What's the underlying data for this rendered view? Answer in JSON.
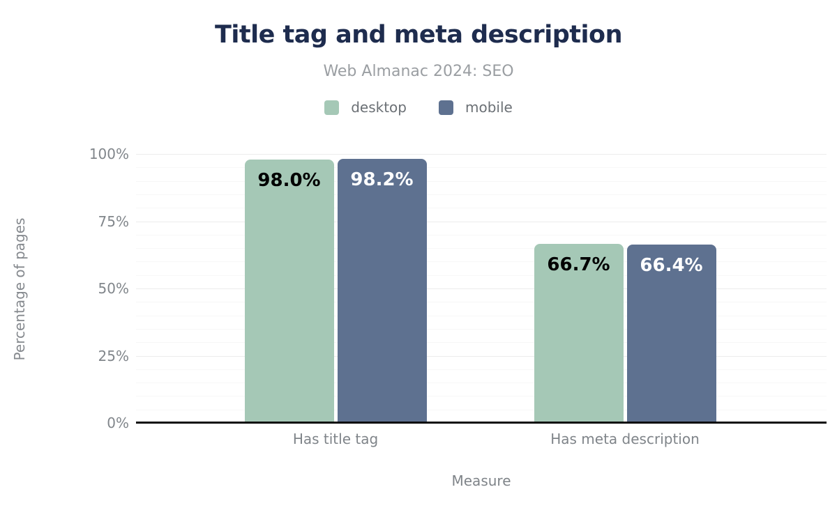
{
  "chart_data": {
    "type": "bar",
    "title": "Title tag and meta description",
    "subtitle": "Web Almanac 2024: SEO",
    "xlabel": "Measure",
    "ylabel": "Percentage of pages",
    "categories": [
      "Has title tag",
      "Has meta description"
    ],
    "series": [
      {
        "name": "desktop",
        "color": "#a5c8b6",
        "label_color": "#000000",
        "values": [
          98.0,
          66.7
        ],
        "labels": [
          "98.0%",
          "66.7%"
        ]
      },
      {
        "name": "mobile",
        "color": "#5e7190",
        "label_color": "#ffffff",
        "values": [
          98.2,
          66.4
        ],
        "labels": [
          "98.2%",
          "66.4%"
        ]
      }
    ],
    "ylim": [
      0,
      100
    ],
    "yticks": [
      0,
      25,
      50,
      75,
      100
    ],
    "ytick_labels": [
      "0%",
      "25%",
      "50%",
      "75%",
      "100%"
    ],
    "minor_grid_step": 5,
    "grid": true,
    "legend_position": "top",
    "colors": {
      "title": "#1e2c4e",
      "subtitle": "#9a9ea2",
      "axis_text": "#81868b",
      "axis_line": "#0b0b0b",
      "major_grid": "#ececec",
      "minor_grid": "#f7f7f7",
      "background": "#ffffff"
    }
  }
}
